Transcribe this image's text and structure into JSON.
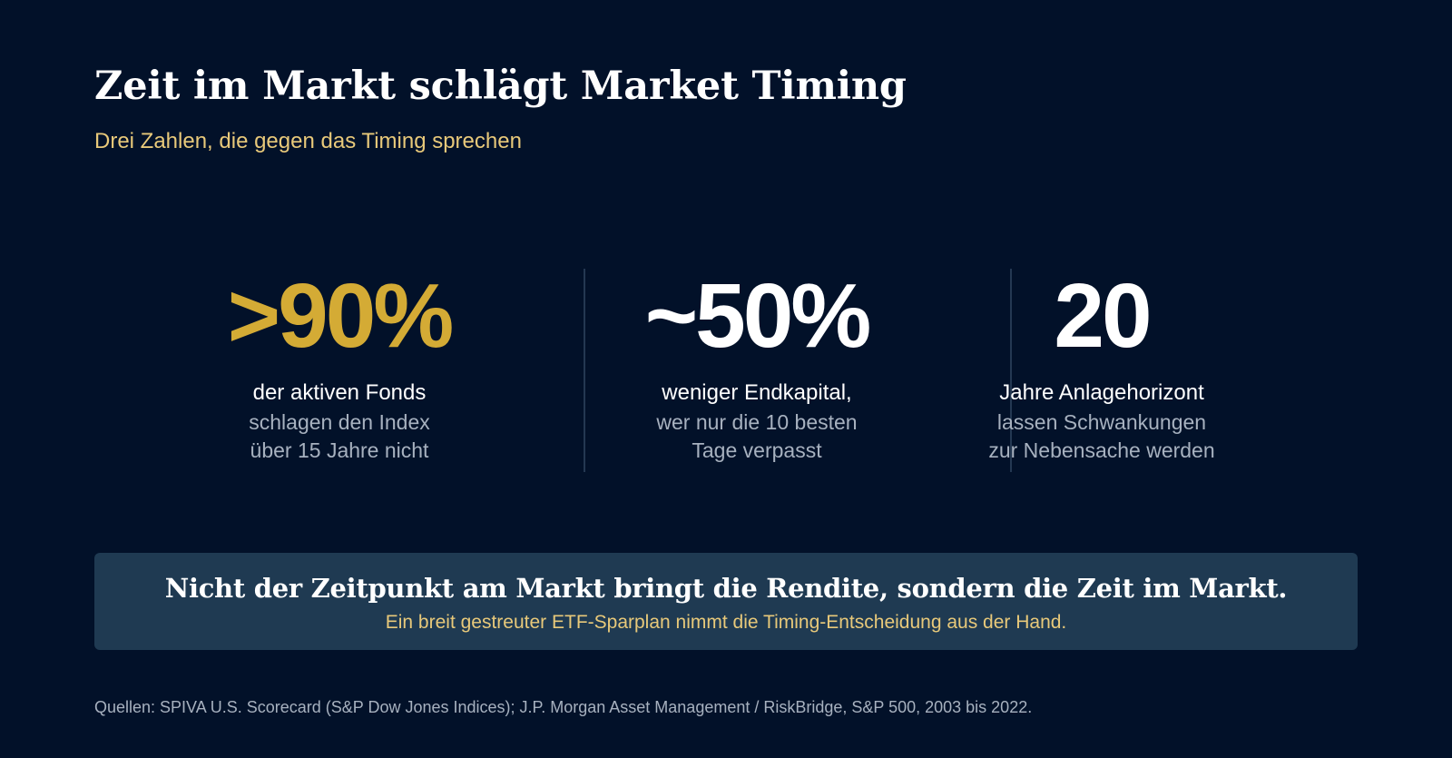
{
  "header": {
    "title": "Zeit im Markt schlägt Market Timing",
    "subtitle": "Drei Zahlen, die gegen das Timing sprechen"
  },
  "stats": [
    {
      "value": ">90%",
      "lead": "der aktiven Fonds",
      "desc_line1": "schlagen den Index",
      "desc_line2": "über 15 Jahre nicht"
    },
    {
      "value": "~50%",
      "lead": "weniger Endkapital,",
      "desc_line1": "wer nur die 10 besten",
      "desc_line2": "Tage verpasst"
    },
    {
      "value": "20",
      "lead": "Jahre Anlagehorizont",
      "desc_line1": "lassen Schwankungen",
      "desc_line2": "zur Nebensache werden"
    }
  ],
  "callout": {
    "title": "Nicht der Zeitpunkt am Markt bringt die Rendite, sondern die Zeit im Markt.",
    "subtitle": "Ein breit gestreuter ETF-Sparplan nimmt die Timing-Entscheidung aus der Hand."
  },
  "footer": {
    "source": "Quellen: SPIVA U.S. Scorecard (S&P Dow Jones Indices); J.P. Morgan Asset Management / RiskBridge, S&P 500, 2003 bis 2022."
  },
  "colors": {
    "background": "#021129",
    "accent_gold": "#d4ab35",
    "accent_light_gold": "#e8c97a",
    "muted_text": "#a7b1bf",
    "callout_bg": "#1f3a52",
    "divider": "#243852"
  }
}
